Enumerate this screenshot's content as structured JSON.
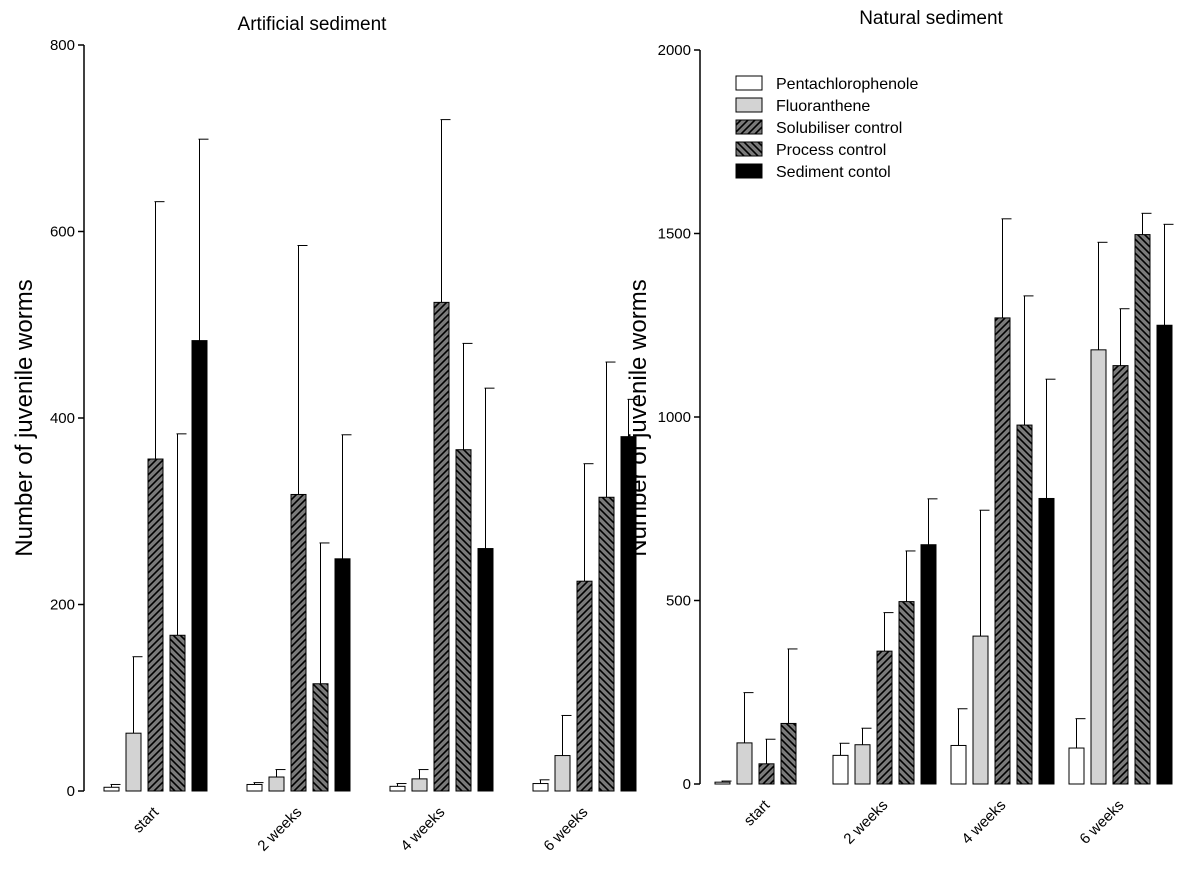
{
  "chart_data": [
    {
      "type": "bar",
      "title": "Artificial sediment",
      "xlabel": "",
      "ylabel": "Number of juvenile worms",
      "categories": [
        "start",
        "2 weeks",
        "4 weeks",
        "6 weeks"
      ],
      "ylim": [
        0,
        800
      ],
      "yticks": [
        "0",
        "200",
        "400",
        "600",
        "800"
      ],
      "series": [
        {
          "name": "Pentachlorophenole",
          "values": [
            4,
            7,
            5,
            8
          ],
          "errors": [
            3,
            2,
            3,
            4
          ]
        },
        {
          "name": "Fluoranthene",
          "values": [
            62,
            15,
            13,
            38
          ],
          "errors": [
            82,
            8,
            10,
            43
          ]
        },
        {
          "name": "Solubiliser control",
          "values": [
            356,
            318,
            524,
            225
          ],
          "errors": [
            276,
            267,
            196,
            126
          ]
        },
        {
          "name": "Process control",
          "values": [
            167,
            115,
            366,
            315
          ],
          "errors": [
            216,
            151,
            114,
            145
          ]
        },
        {
          "name": "Sediment contol",
          "values": [
            483,
            249,
            260,
            380
          ],
          "errors": [
            216,
            133,
            172,
            40
          ]
        }
      ]
    },
    {
      "type": "bar",
      "title": "Natural sediment",
      "xlabel": "",
      "ylabel": "Number of juvenile worms",
      "categories": [
        "start",
        "2 weeks",
        "4 weeks",
        "6 weeks"
      ],
      "ylim": [
        0,
        2000
      ],
      "yticks": [
        "0",
        "500",
        "1000",
        "1500",
        "2000"
      ],
      "legend_position": "top-left",
      "series": [
        {
          "name": "Pentachlorophenole",
          "values": [
            5,
            78,
            105,
            98
          ],
          "errors": [
            3,
            33,
            100,
            80
          ]
        },
        {
          "name": "Fluoranthene",
          "values": [
            112,
            107,
            403,
            1183
          ],
          "errors": [
            137,
            45,
            343,
            293
          ]
        },
        {
          "name": "Solubiliser control",
          "values": [
            55,
            362,
            1270,
            1140
          ],
          "errors": [
            67,
            105,
            270,
            155
          ]
        },
        {
          "name": "Process control",
          "values": [
            165,
            497,
            978,
            1497
          ],
          "errors": [
            203,
            138,
            352,
            58
          ]
        },
        {
          "name": "Sediment contol",
          "values": [
            0,
            652,
            778,
            1250
          ],
          "errors": [
            0,
            125,
            325,
            275
          ]
        }
      ]
    }
  ],
  "legend": {
    "items": [
      {
        "label": "Pentachlorophenole",
        "fill": "#ffffff",
        "pattern": "none"
      },
      {
        "label": "Fluoranthene",
        "fill": "#d3d3d3",
        "pattern": "none"
      },
      {
        "label": "Solubiliser control",
        "fill": "#7a7a7a",
        "pattern": "hatch-up"
      },
      {
        "label": "Process control",
        "fill": "#7a7a7a",
        "pattern": "hatch-down"
      },
      {
        "label": "Sediment contol",
        "fill": "#000000",
        "pattern": "none"
      }
    ]
  },
  "colors": {
    "white_bar": "#ffffff",
    "light_grey_bar": "#d3d3d3",
    "hatched_bar_base": "#7a7a7a",
    "black_bar": "#000000",
    "axis": "#000000"
  }
}
